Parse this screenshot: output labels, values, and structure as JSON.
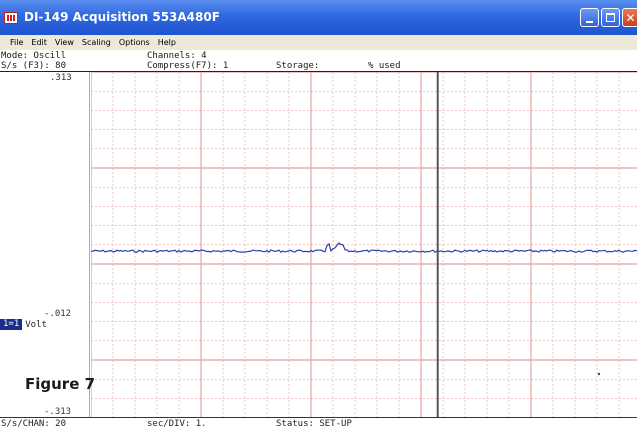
{
  "window": {
    "title": "DI-149 Acquisition 553A480F",
    "icon": "app-grid-icon"
  },
  "menu": [
    "File",
    "Edit",
    "View",
    "Scaling",
    "Options",
    "Help"
  ],
  "info": {
    "mode": "Mode: Oscill",
    "channels": "Channels: 4",
    "sample_rate": "S/s (F3): 80",
    "compress": "Compress(F7): 1",
    "storage": "Storage:",
    "used": "% used"
  },
  "scale": {
    "top": ".313",
    "mid": "-.012",
    "bottom": "-.313"
  },
  "channel": {
    "number": "1=1",
    "unit": "Volt"
  },
  "figure_label": "Figure 7",
  "status": {
    "s_per_chan": "S/s/CHAN: 20",
    "sec_per_div": "sec/DIV: 1.",
    "state": "Status: SET-UP"
  },
  "colors": {
    "grid": "#e8a0a0",
    "trace": "#2e3fa6",
    "cursor": "#555555"
  },
  "trace": {
    "level": -0.012,
    "range": [
      -0.313,
      0.313
    ],
    "cursor_time_fraction": 0.635
  }
}
